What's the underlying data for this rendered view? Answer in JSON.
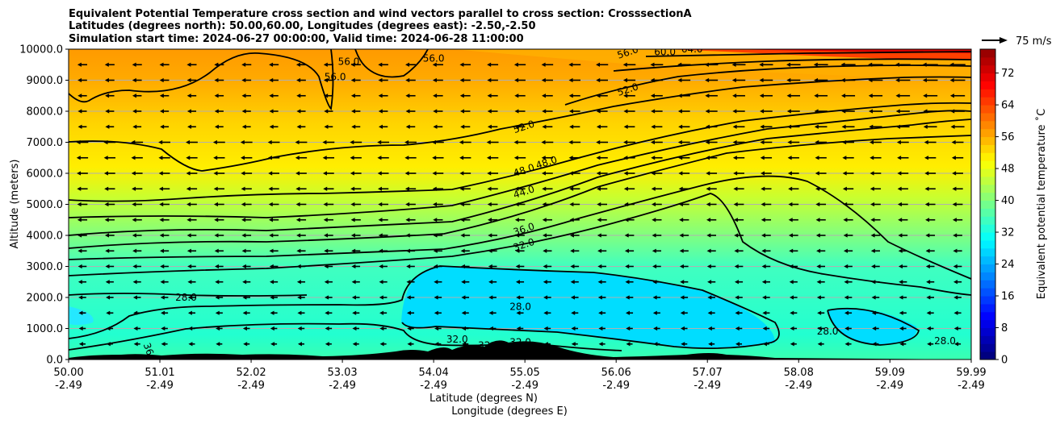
{
  "chart_data": {
    "type": "contour",
    "title_lines": [
      "Equivalent Potential Temperature cross section and wind vectors parallel to cross section: CrosssectionA",
      "Latitudes (degrees north): 50.00,60.00, Longitudes (degrees east): -2.50,-2.50",
      "Simulation start time: 2024-06-27 00:00:00, Valid time: 2024-06-28 11:00:00"
    ],
    "xlabel_line1": "Latitude (degrees N)",
    "xlabel_line2": "Longitude (degrees E)",
    "ylabel": "Altitude (meters)",
    "colorbar_label": "Equivalent potential temperature ˚C",
    "quiver_key_label": "75 m/s",
    "ylim": [
      0,
      10000
    ],
    "clim": [
      0,
      78
    ],
    "x_ticks": [
      {
        "lat": "50.00",
        "lon": "-2.49"
      },
      {
        "lat": "51.01",
        "lon": "-2.49"
      },
      {
        "lat": "52.02",
        "lon": "-2.49"
      },
      {
        "lat": "53.03",
        "lon": "-2.49"
      },
      {
        "lat": "54.04",
        "lon": "-2.49"
      },
      {
        "lat": "55.05",
        "lon": "-2.49"
      },
      {
        "lat": "56.06",
        "lon": "-2.49"
      },
      {
        "lat": "57.07",
        "lon": "-2.49"
      },
      {
        "lat": "58.08",
        "lon": "-2.49"
      },
      {
        "lat": "59.09",
        "lon": "-2.49"
      },
      {
        "lat": "59.99",
        "lon": "-2.49"
      }
    ],
    "y_ticks": [
      "0.0",
      "1000.0",
      "2000.0",
      "3000.0",
      "4000.0",
      "5000.0",
      "6000.0",
      "7000.0",
      "8000.0",
      "9000.0",
      "10000.0"
    ],
    "colorbar_ticks": [
      "0",
      "8",
      "16",
      "24",
      "32",
      "40",
      "48",
      "56",
      "64",
      "72"
    ],
    "contour_levels": [
      28,
      32,
      36,
      40,
      44,
      48,
      52,
      56,
      60,
      64,
      68,
      72
    ],
    "contour_labels": [
      {
        "text": "28.0",
        "lat": 51.3,
        "alt": 1900
      },
      {
        "text": "36",
        "lat": 50.85,
        "alt": 300
      },
      {
        "text": "32.0",
        "lat": 54.3,
        "alt": 550
      },
      {
        "text": "32",
        "lat": 54.6,
        "alt": 350
      },
      {
        "text": "32.0",
        "lat": 55.0,
        "alt": 450
      },
      {
        "text": "28.0",
        "lat": 55.0,
        "alt": 1600
      },
      {
        "text": "32.0",
        "lat": 55.05,
        "alt": 3600
      },
      {
        "text": "36.0",
        "lat": 55.05,
        "alt": 4100
      },
      {
        "text": "44.0",
        "lat": 55.05,
        "alt": 5300
      },
      {
        "text": "48.0",
        "lat": 55.05,
        "alt": 6000
      },
      {
        "text": "48.0",
        "lat": 55.3,
        "alt": 6250
      },
      {
        "text": "52.0",
        "lat": 55.05,
        "alt": 7400
      },
      {
        "text": "52.0",
        "lat": 56.2,
        "alt": 8600
      },
      {
        "text": "56.0",
        "lat": 52.95,
        "alt": 9000
      },
      {
        "text": "56.0",
        "lat": 53.1,
        "alt": 9500
      },
      {
        "text": "56.0",
        "lat": 54.04,
        "alt": 9600
      },
      {
        "text": "56.0",
        "lat": 56.2,
        "alt": 9800
      },
      {
        "text": "60.0",
        "lat": 56.6,
        "alt": 9800
      },
      {
        "text": "64.0",
        "lat": 56.9,
        "alt": 9900
      },
      {
        "text": "28.0",
        "lat": 58.4,
        "alt": 800
      },
      {
        "text": "28.0",
        "lat": 59.7,
        "alt": 500
      }
    ],
    "wind_vectors": {
      "direction": "toward lower latitude",
      "max_speed_m_s": 75,
      "reference_speed_m_s": 75
    }
  }
}
